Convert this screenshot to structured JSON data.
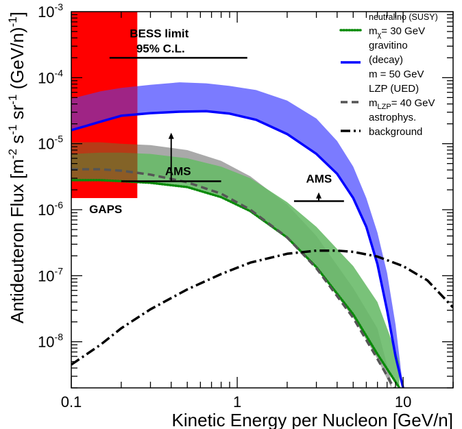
{
  "chart_data": {
    "type": "line",
    "title": "",
    "xlabel": "Kinetic Energy per Nucleon [GeV/n]",
    "ylabel": {
      "parts": [
        "Antideuteron Flux [m",
        "-2",
        " s",
        "-1",
        " sr",
        "-1",
        " (GeV/n)",
        "-1",
        "]"
      ]
    },
    "x_scale": "log",
    "y_scale": "log",
    "xlim": [
      0.1,
      20
    ],
    "ylim": [
      2e-09,
      0.001
    ],
    "x_ticks": [
      {
        "value": 0.1,
        "label": "0.1"
      },
      {
        "value": 1,
        "label": "1"
      },
      {
        "value": 10,
        "label": "10"
      }
    ],
    "y_ticks": [
      {
        "value": 1e-08,
        "base": "10",
        "exp": "-8"
      },
      {
        "value": 1e-07,
        "base": "10",
        "exp": "-7"
      },
      {
        "value": 1e-06,
        "base": "10",
        "exp": "-6"
      },
      {
        "value": 1e-05,
        "base": "10",
        "exp": "-5"
      },
      {
        "value": 0.0001,
        "base": "10",
        "exp": "-4"
      },
      {
        "value": 0.001,
        "base": "10",
        "exp": "-3"
      }
    ],
    "grid": false,
    "legend_position": "top-right",
    "legend": [
      {
        "key": "neutralino",
        "lines": [
          {
            "parts": [
              {
                "t": "neutralino (SUSY)",
                "small": true
              }
            ]
          },
          {
            "parts": [
              {
                "t": "m"
              },
              {
                "t": "χ",
                "sub": true
              },
              {
                "t": "= 30 GeV"
              }
            ]
          }
        ]
      },
      {
        "key": "gravitino",
        "lines": [
          {
            "parts": [
              {
                "t": "gravitino"
              }
            ]
          },
          {
            "parts": [
              {
                "t": "(decay)"
              }
            ]
          },
          {
            "parts": [
              {
                "t": "m = 50 GeV"
              }
            ]
          }
        ]
      },
      {
        "key": "lzp",
        "lines": [
          {
            "parts": [
              {
                "t": "LZP (UED)"
              }
            ]
          },
          {
            "parts": [
              {
                "t": "m"
              },
              {
                "t": "LZP",
                "sub": true
              },
              {
                "t": "= 40 GeV"
              }
            ]
          }
        ]
      },
      {
        "key": "background",
        "lines": [
          {
            "parts": [
              {
                "t": "astrophys."
              }
            ]
          },
          {
            "parts": [
              {
                "t": "background"
              }
            ]
          }
        ]
      }
    ],
    "colors": {
      "gaps_region": "#ff0000",
      "gravitino": "#0000ff",
      "gravitino_band": "#7b7bff",
      "neutralino": "#0a8a0a",
      "neutralino_band": "#66b966",
      "lzp": "#555555",
      "lzp_band": "#a9a9a9",
      "background": "#000000",
      "overlap_red_blue": "#8e2a9c",
      "overlap_red_green": "#7a6b2a"
    },
    "experiments": [
      {
        "name": "GAPS",
        "label": "GAPS",
        "type": "region",
        "x_range": [
          0.1,
          0.25
        ],
        "flux_lower": 1.5e-06
      },
      {
        "name": "BESS",
        "label_lines": [
          "BESS limit",
          "95% C.L."
        ],
        "type": "limit",
        "x_range": [
          0.17,
          1.15
        ],
        "flux": 0.0002
      },
      {
        "name": "AMS low",
        "label": "AMS",
        "type": "sensitivity",
        "x_range": [
          0.2,
          0.8
        ],
        "flux": 2.7e-06,
        "arrow_x": 0.4,
        "arrow_to": 1.4e-05
      },
      {
        "name": "AMS high",
        "label": "AMS",
        "type": "sensitivity",
        "x_range": [
          2.2,
          4.4
        ],
        "flux": 1.35e-06,
        "arrow_x": 3.1,
        "arrow_to": 1.75e-06
      }
    ],
    "series": [
      {
        "name": "neutralino (SUSY)",
        "key": "neutralino",
        "style": "dotted",
        "x": [
          0.1,
          0.15,
          0.2,
          0.3,
          0.5,
          0.8,
          1.2,
          2,
          3,
          5,
          7,
          9.5
        ],
        "y": [
          2.8e-06,
          2.8e-06,
          2.7e-06,
          2.55e-06,
          2.2e-06,
          1.55e-06,
          9.5e-07,
          3.8e-07,
          1.35e-07,
          2.6e-08,
          6.5e-09,
          2e-09
        ]
      },
      {
        "name": "LZP (UED)",
        "key": "lzp",
        "style": "dashed",
        "x": [
          0.1,
          0.15,
          0.2,
          0.3,
          0.5,
          0.8,
          1.2,
          2,
          3,
          5,
          7,
          8.8
        ],
        "y": [
          4.1e-06,
          4.1e-06,
          3.9e-06,
          3.4e-06,
          2.6e-06,
          1.75e-06,
          1e-06,
          3.8e-07,
          1.3e-07,
          2.3e-08,
          5.5e-09,
          2e-09
        ]
      },
      {
        "name": "gravitino",
        "key": "gravitino",
        "style": "solid",
        "x": [
          0.1,
          0.15,
          0.2,
          0.3,
          0.45,
          0.65,
          0.9,
          1.3,
          2,
          3,
          4,
          5,
          6,
          7,
          8,
          9,
          10
        ],
        "y": [
          1.6e-05,
          2.15e-05,
          2.65e-05,
          2.9e-05,
          3.05e-05,
          3.1e-05,
          2.85e-05,
          2.3e-05,
          1.4e-05,
          7e-06,
          3.5e-06,
          1.5e-06,
          5.5e-07,
          1.5e-07,
          3e-08,
          6e-09,
          2e-09
        ]
      },
      {
        "name": "astrophys. background",
        "key": "background",
        "style": "dashdot",
        "x": [
          0.1,
          0.15,
          0.2,
          0.3,
          0.5,
          0.8,
          1.2,
          2,
          3,
          4,
          5,
          7,
          10,
          14,
          20
        ],
        "y": [
          4.5e-09,
          9e-09,
          1.6e-08,
          3.1e-08,
          6.2e-08,
          1.06e-07,
          1.58e-07,
          2.15e-07,
          2.4e-07,
          2.4e-07,
          2.3e-07,
          1.95e-07,
          1.4e-07,
          8.5e-08,
          3.3e-08
        ]
      }
    ],
    "bands": [
      {
        "key": "gravitino",
        "x": [
          0.1,
          0.15,
          0.2,
          0.3,
          0.45,
          0.65,
          0.9,
          1.3,
          2,
          3,
          4,
          5,
          6,
          7,
          8,
          9,
          10
        ],
        "upper": [
          4.8e-05,
          6.2e-05,
          7e-05,
          7.8e-05,
          8.5e-05,
          8.2e-05,
          7.5e-05,
          6.5e-05,
          4.5e-05,
          2.4e-05,
          1.1e-05,
          4.5e-06,
          1.5e-06,
          4.5e-07,
          1.1e-07,
          1.8e-08,
          2e-09
        ],
        "lower": [
          1.6e-05,
          2.15e-05,
          2.65e-05,
          2.9e-05,
          3.05e-05,
          3.1e-05,
          2.85e-05,
          2.3e-05,
          1.4e-05,
          7e-06,
          3.5e-06,
          1.5e-06,
          5.5e-07,
          1.5e-07,
          3e-08,
          6e-09,
          2e-09
        ]
      },
      {
        "key": "lzp",
        "x": [
          0.1,
          0.15,
          0.2,
          0.3,
          0.5,
          0.8,
          1.2,
          2,
          3,
          5,
          7,
          8.5
        ],
        "upper": [
          1.05e-05,
          1.05e-05,
          1e-05,
          9.5e-06,
          8e-06,
          5.5e-06,
          3.2e-06,
          1.2e-06,
          4e-07,
          6.5e-08,
          1.6e-08,
          2.5e-09
        ],
        "lower": [
          4.1e-06,
          4.1e-06,
          3.9e-06,
          3.4e-06,
          2.6e-06,
          1.75e-06,
          1e-06,
          3.8e-07,
          1.3e-07,
          2.3e-08,
          5.5e-09,
          2e-09
        ]
      },
      {
        "key": "neutralino",
        "x": [
          0.1,
          0.15,
          0.2,
          0.3,
          0.5,
          0.8,
          1.2,
          2,
          3,
          5,
          7,
          9.5
        ],
        "upper": [
          7e-06,
          7.3e-06,
          7.3e-06,
          7e-06,
          6e-06,
          4.5e-06,
          3e-06,
          1.3e-06,
          5.5e-07,
          1.4e-07,
          4e-08,
          5e-09
        ],
        "lower": [
          2.8e-06,
          2.8e-06,
          2.7e-06,
          2.55e-06,
          2.2e-06,
          1.55e-06,
          9.5e-07,
          3.8e-07,
          1.35e-07,
          2.6e-08,
          6.5e-09,
          2e-09
        ]
      }
    ]
  }
}
